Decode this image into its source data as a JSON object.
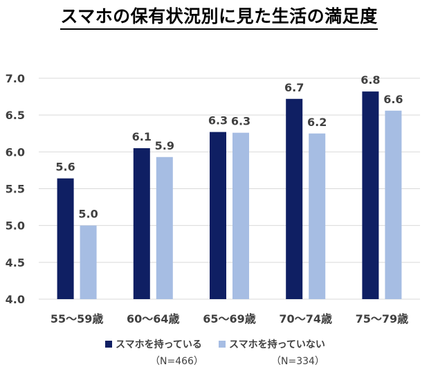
{
  "title": "スマホの保有状況別に見た生活の満足度",
  "colors": {
    "series_1": "#0f1f63",
    "series_2": "#a6bde3",
    "grid": "#d9d9d9",
    "text": "#404040"
  },
  "legend": {
    "items": [
      {
        "label": "スマホを持っている",
        "n_label": "（N=466）"
      },
      {
        "label": "スマホを持っていない",
        "n_label": "（N=334）"
      }
    ],
    "placement": "bottom"
  },
  "chart_data": {
    "type": "bar",
    "title": "スマホの保有状況別に見た生活の満足度",
    "categories": [
      "55〜59歳",
      "60〜64歳",
      "65〜69歳",
      "70〜74歳",
      "75〜79歳"
    ],
    "series": [
      {
        "name": "スマホを持っている",
        "values": [
          5.64,
          6.05,
          6.27,
          6.72,
          6.82
        ],
        "labels": [
          "5.6",
          "6.1",
          "6.3",
          "6.7",
          "6.8"
        ]
      },
      {
        "name": "スマホを持っていない",
        "values": [
          5.0,
          5.93,
          6.26,
          6.25,
          6.56
        ],
        "labels": [
          "5.0",
          "5.9",
          "6.3",
          "6.2",
          "6.6"
        ]
      }
    ],
    "ylim": [
      4.0,
      7.0
    ],
    "yticks": [
      "4.0",
      "4.5",
      "5.0",
      "5.5",
      "6.0",
      "6.5",
      "7.0"
    ],
    "grid": true,
    "xlabel": "",
    "ylabel": ""
  }
}
